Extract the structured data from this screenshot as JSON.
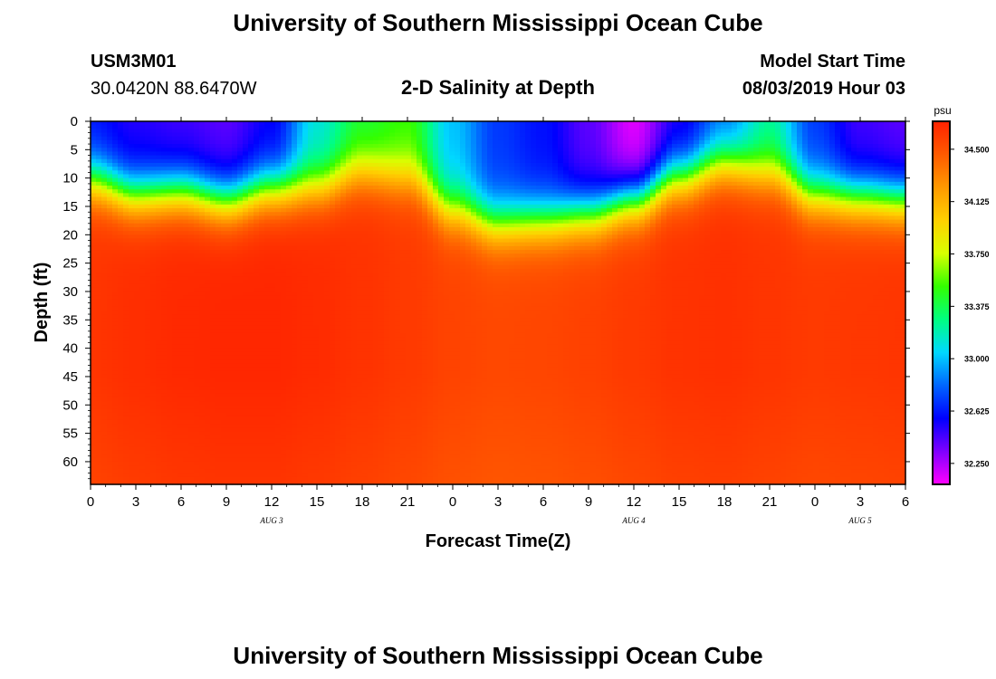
{
  "header": {
    "title": "University of Southern Mississippi Ocean Cube",
    "station_id": "USM3M01",
    "location": "30.0420N 88.6470W",
    "plot_title": "2-D Salinity at Depth",
    "model_start_label": "Model Start Time",
    "model_start_value": "08/03/2019 Hour 03",
    "footer_title": "University of Southern Mississippi Ocean Cube"
  },
  "chart_data": {
    "type": "heatmap",
    "title": "2-D Salinity at Depth",
    "xlabel": "Forecast Time(Z)",
    "ylabel": "Depth (ft)",
    "x_hours": [
      0,
      3,
      6,
      9,
      12,
      15,
      18,
      21,
      24,
      27,
      30,
      33,
      36,
      39,
      42,
      45,
      48,
      51,
      54
    ],
    "x_tick_labels": [
      "0",
      "3",
      "6",
      "9",
      "12",
      "15",
      "18",
      "21",
      "0",
      "3",
      "6",
      "9",
      "12",
      "15",
      "18",
      "21",
      "0",
      "3",
      "6"
    ],
    "date_labels": [
      {
        "label": "AUG 3",
        "hour": 12
      },
      {
        "label": "AUG 4",
        "hour": 36
      },
      {
        "label": "AUG 5",
        "hour": 51
      }
    ],
    "xlim": [
      0,
      54
    ],
    "ylim": [
      0,
      64
    ],
    "y_ticks": [
      0,
      5,
      10,
      15,
      20,
      25,
      30,
      35,
      40,
      45,
      50,
      55,
      60
    ],
    "y_tick_labels": [
      "0",
      "5",
      "10",
      "15",
      "20",
      "25",
      "30",
      "35",
      "40",
      "45",
      "50",
      "55",
      "60"
    ],
    "halocline_depth_ft": [
      10.5,
      13,
      12.5,
      14,
      12,
      11.5,
      9,
      10,
      15.5,
      18,
      17.5,
      16.5,
      14,
      10,
      7.5,
      9,
      13,
      13.5,
      14
    ],
    "surface_salinity_psu": [
      32.6,
      32.5,
      32.45,
      32.4,
      32.55,
      33.1,
      33.4,
      33.5,
      33.0,
      32.7,
      32.6,
      32.4,
      32.15,
      32.5,
      32.8,
      33.2,
      32.7,
      32.45,
      32.4
    ],
    "deep_salinity_psu": [
      34.62,
      34.65,
      34.67,
      34.68,
      34.68,
      34.66,
      34.63,
      34.6,
      34.56,
      34.54,
      34.55,
      34.57,
      34.6,
      34.63,
      34.64,
      34.62,
      34.6,
      34.61,
      34.62
    ],
    "colorbar": {
      "unit": "psu",
      "min": 32.1,
      "max": 34.7,
      "ticks": [
        "34.500",
        "34.125",
        "33.750",
        "33.375",
        "33.000",
        "32.625",
        "32.250"
      ],
      "tick_values": [
        34.5,
        34.125,
        33.75,
        33.375,
        33.0,
        32.625,
        32.25
      ],
      "colors": [
        "#ff00ff",
        "#7f00ff",
        "#0000ff",
        "#0066ff",
        "#00d8ff",
        "#00ff80",
        "#33ff00",
        "#d8ff00",
        "#ffd000",
        "#ff9900",
        "#ff5a00",
        "#ff2200"
      ]
    }
  }
}
